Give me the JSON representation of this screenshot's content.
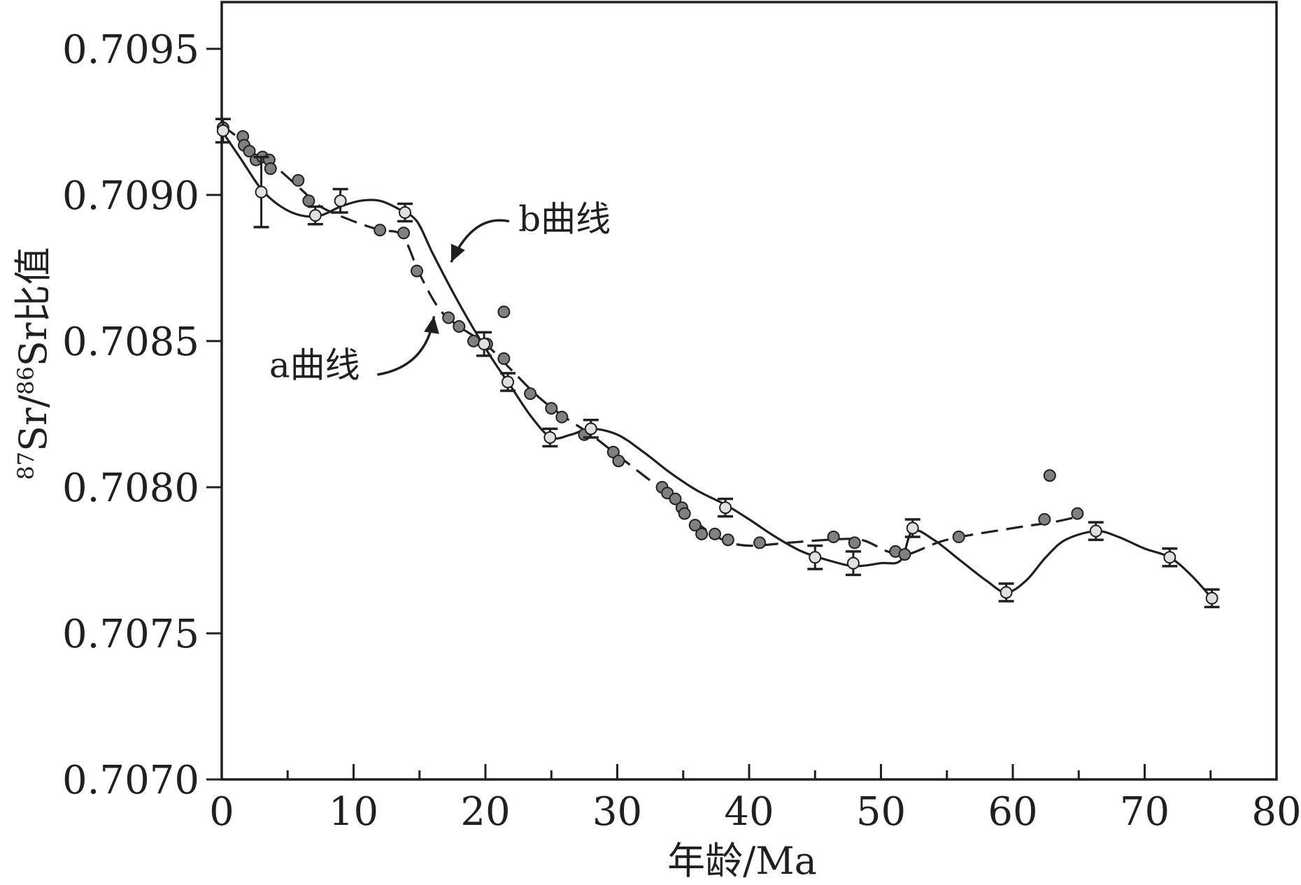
{
  "chart_data": {
    "type": "scatter",
    "title": "",
    "xlabel": "年龄/Ma",
    "ylabel": {
      "sup1": "87",
      "main1": "Sr/",
      "sup2": "86",
      "main2": "Sr比值"
    },
    "xlim": [
      0,
      80
    ],
    "ylim": [
      0.707,
      0.70966
    ],
    "x_ticks": [
      0,
      10,
      20,
      30,
      40,
      50,
      60,
      70,
      80
    ],
    "x_tick_labels": [
      "0",
      "10",
      "20",
      "30",
      "40",
      "50",
      "60",
      "70",
      "80"
    ],
    "x_minor_step": 5,
    "y_ticks": [
      0.707,
      0.7075,
      0.708,
      0.7085,
      0.709,
      0.7095
    ],
    "y_tick_labels": [
      "0.7070",
      "0.7075",
      "0.7080",
      "0.7085",
      "0.7090",
      "0.7095"
    ],
    "grid": false,
    "colors": {
      "ink": "#231f20",
      "dark_marker": "#808080",
      "light_marker": "#e0e0e0"
    },
    "annotations": [
      {
        "id": "b",
        "text": "b曲线",
        "anchor": [
          22.5,
          0.70892
        ],
        "arrow_from": [
          21.8,
          0.70891
        ],
        "arrow_to": [
          17.4,
          0.70877
        ]
      },
      {
        "id": "a",
        "text": "a曲线",
        "anchor": [
          3.6,
          0.70842
        ],
        "arrow_from": [
          11.8,
          0.708385
        ],
        "arrow_to": [
          16.1,
          0.708585
        ]
      }
    ],
    "series": [
      {
        "id": "a-points",
        "marker": "filled-dark",
        "points": [
          [
            0.1,
            0.70923
          ],
          [
            1.6,
            0.7092
          ],
          [
            1.7,
            0.70917
          ],
          [
            2.1,
            0.70915
          ],
          [
            2.6,
            0.70912
          ],
          [
            3.1,
            0.70913
          ],
          [
            3.6,
            0.70912
          ],
          [
            3.7,
            0.70909
          ],
          [
            5.8,
            0.70905
          ],
          [
            6.6,
            0.70898
          ],
          [
            12.0,
            0.70888
          ],
          [
            13.8,
            0.70887
          ],
          [
            14.8,
            0.70874
          ],
          [
            17.2,
            0.70858
          ],
          [
            18.0,
            0.70855
          ],
          [
            19.1,
            0.7085
          ],
          [
            20.1,
            0.70849
          ],
          [
            21.4,
            0.70844
          ],
          [
            21.4,
            0.7086
          ],
          [
            23.4,
            0.70832
          ],
          [
            25.0,
            0.70827
          ],
          [
            25.8,
            0.70824
          ],
          [
            27.5,
            0.70818
          ],
          [
            29.7,
            0.70812
          ],
          [
            30.1,
            0.70809
          ],
          [
            33.4,
            0.708
          ],
          [
            33.8,
            0.70798
          ],
          [
            34.4,
            0.70796
          ],
          [
            34.9,
            0.70793
          ],
          [
            35.1,
            0.70791
          ],
          [
            35.9,
            0.70787
          ],
          [
            36.4,
            0.70784
          ],
          [
            37.4,
            0.70784
          ],
          [
            38.4,
            0.70782
          ],
          [
            40.8,
            0.70781
          ],
          [
            46.4,
            0.70783
          ],
          [
            48.0,
            0.70781
          ],
          [
            51.1,
            0.70778
          ],
          [
            51.8,
            0.70777
          ],
          [
            55.9,
            0.70783
          ],
          [
            62.4,
            0.70789
          ],
          [
            62.8,
            0.70804
          ],
          [
            64.9,
            0.70791
          ]
        ]
      },
      {
        "id": "a-curve",
        "style": "dashed",
        "points": [
          [
            0,
            0.70924
          ],
          [
            2,
            0.70917
          ],
          [
            4,
            0.7091
          ],
          [
            6,
            0.70902
          ],
          [
            7.5,
            0.70896
          ],
          [
            10,
            0.70891
          ],
          [
            12,
            0.70888
          ],
          [
            13.7,
            0.70886
          ],
          [
            15,
            0.70873
          ],
          [
            16.5,
            0.70861
          ],
          [
            18,
            0.70855
          ],
          [
            20,
            0.70849
          ],
          [
            22,
            0.7084
          ],
          [
            24,
            0.70831
          ],
          [
            26,
            0.70824
          ],
          [
            28,
            0.70818
          ],
          [
            30,
            0.70811
          ],
          [
            32,
            0.70804
          ],
          [
            34,
            0.70797
          ],
          [
            36,
            0.70788
          ],
          [
            38,
            0.70782
          ],
          [
            40,
            0.7078
          ],
          [
            43,
            0.70781
          ],
          [
            46,
            0.70782
          ],
          [
            48.5,
            0.70782
          ],
          [
            50.5,
            0.70778
          ],
          [
            52,
            0.70777
          ],
          [
            55,
            0.70782
          ],
          [
            60,
            0.70786
          ],
          [
            63,
            0.70788
          ],
          [
            65,
            0.7079
          ]
        ]
      },
      {
        "id": "b-points",
        "marker": "open-light-errorbar",
        "points": [
          {
            "x": 0.1,
            "y": 0.70922,
            "err": 4e-05
          },
          {
            "x": 3.0,
            "y": 0.70901,
            "err": 0.00012
          },
          {
            "x": 7.1,
            "y": 0.70893,
            "err": 3e-05
          },
          {
            "x": 9.0,
            "y": 0.70898,
            "err": 4e-05
          },
          {
            "x": 13.9,
            "y": 0.70894,
            "err": 3e-05
          },
          {
            "x": 19.9,
            "y": 0.70849,
            "err": 4e-05
          },
          {
            "x": 21.7,
            "y": 0.70836,
            "err": 3e-05
          },
          {
            "x": 24.9,
            "y": 0.70817,
            "err": 3e-05
          },
          {
            "x": 28.0,
            "y": 0.7082,
            "err": 3e-05
          },
          {
            "x": 38.2,
            "y": 0.70793,
            "err": 3e-05
          },
          {
            "x": 45.0,
            "y": 0.70776,
            "err": 4e-05
          },
          {
            "x": 47.9,
            "y": 0.70774,
            "err": 4e-05
          },
          {
            "x": 52.4,
            "y": 0.70786,
            "err": 3e-05
          },
          {
            "x": 59.5,
            "y": 0.70764,
            "err": 3e-05
          },
          {
            "x": 66.3,
            "y": 0.70785,
            "err": 3e-05
          },
          {
            "x": 71.9,
            "y": 0.70776,
            "err": 3e-05
          },
          {
            "x": 75.1,
            "y": 0.70762,
            "err": 3e-05
          }
        ]
      },
      {
        "id": "b-curve",
        "style": "solid",
        "points": [
          [
            0,
            0.70922
          ],
          [
            1.5,
            0.70912
          ],
          [
            3,
            0.70902
          ],
          [
            4.5,
            0.70896
          ],
          [
            6,
            0.70893
          ],
          [
            7.5,
            0.70893
          ],
          [
            9,
            0.70896
          ],
          [
            10.5,
            0.70898
          ],
          [
            12,
            0.70898
          ],
          [
            13.5,
            0.70895
          ],
          [
            14.8,
            0.70891
          ],
          [
            16,
            0.7088
          ],
          [
            17.5,
            0.70867
          ],
          [
            19,
            0.70855
          ],
          [
            20.5,
            0.70844
          ],
          [
            22,
            0.70834
          ],
          [
            23.5,
            0.70824
          ],
          [
            25,
            0.70817
          ],
          [
            26.5,
            0.70818
          ],
          [
            28,
            0.7082
          ],
          [
            30,
            0.70818
          ],
          [
            32,
            0.70812
          ],
          [
            34,
            0.70805
          ],
          [
            36,
            0.70799
          ],
          [
            38.2,
            0.70794
          ],
          [
            40,
            0.70789
          ],
          [
            42,
            0.70783
          ],
          [
            44,
            0.70778
          ],
          [
            46,
            0.70775
          ],
          [
            48,
            0.70773
          ],
          [
            50,
            0.70774
          ],
          [
            51.5,
            0.70775
          ],
          [
            52.4,
            0.70785
          ],
          [
            54,
            0.70782
          ],
          [
            56,
            0.70775
          ],
          [
            58,
            0.70768
          ],
          [
            59.5,
            0.70764
          ],
          [
            61,
            0.70768
          ],
          [
            62.5,
            0.70776
          ],
          [
            64,
            0.70782
          ],
          [
            66.3,
            0.70785
          ],
          [
            68,
            0.70783
          ],
          [
            70,
            0.70779
          ],
          [
            71.9,
            0.70776
          ],
          [
            73.5,
            0.7077
          ],
          [
            75.1,
            0.70762
          ]
        ]
      }
    ]
  }
}
